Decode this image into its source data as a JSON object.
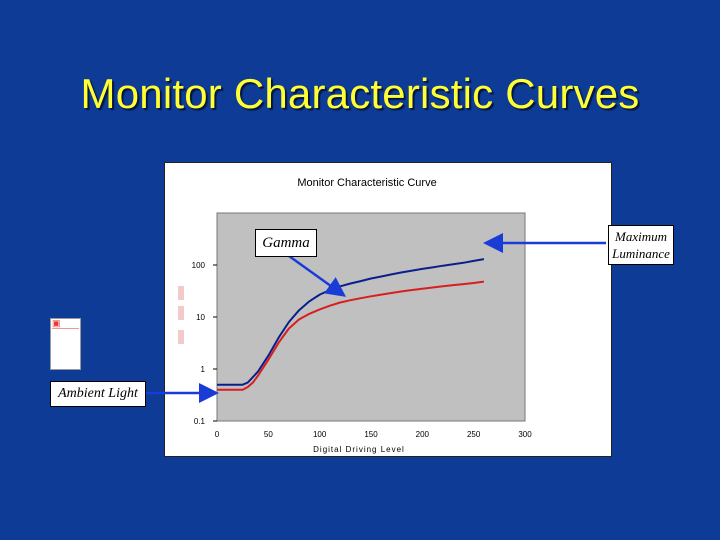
{
  "slide": {
    "title": "Monitor Characteristic Curves"
  },
  "callouts": {
    "gamma": "Gamma",
    "max_luminance_line1": "Maximum",
    "max_luminance_line2": "Luminance",
    "ambient": "Ambient Light"
  },
  "colors": {
    "background": "#0d3b96",
    "title": "#ffff33",
    "plot_area": "#c0c0c0",
    "series_blue": "#0a1f8c",
    "series_red": "#d81e1e",
    "arrow": "#1a3cd6"
  },
  "chart_data": {
    "type": "line",
    "title": "Monitor Characteristic Curve",
    "xlabel": "Digital Driving Level",
    "ylabel": "",
    "xlim": [
      0,
      300
    ],
    "ylim": [
      0.1,
      1000
    ],
    "yscale": "log",
    "x_ticks": [
      0,
      50,
      100,
      150,
      200,
      250,
      300
    ],
    "y_ticks": [
      0.1,
      1,
      10,
      100
    ],
    "y_tick_labels": [
      "0.1",
      "1",
      "10",
      "100"
    ],
    "grid": false,
    "series": [
      {
        "color": "#0a1f8c",
        "x": [
          0,
          25,
          30,
          35,
          40,
          50,
          60,
          70,
          80,
          90,
          100,
          110,
          120,
          130,
          140,
          150,
          160,
          170,
          180,
          190,
          200,
          210,
          220,
          230,
          240,
          250,
          260
        ],
        "y": [
          0.5,
          0.5,
          0.55,
          0.7,
          0.9,
          1.8,
          4.0,
          8.0,
          13.5,
          20,
          27,
          33,
          39,
          44,
          49,
          55,
          60,
          66,
          72,
          78,
          84,
          90,
          97,
          103,
          110,
          120,
          130
        ]
      },
      {
        "color": "#d81e1e",
        "x": [
          0,
          25,
          30,
          35,
          40,
          50,
          60,
          70,
          80,
          90,
          100,
          110,
          120,
          130,
          140,
          150,
          160,
          170,
          180,
          190,
          200,
          210,
          220,
          230,
          240,
          250,
          260
        ],
        "y": [
          0.4,
          0.4,
          0.45,
          0.55,
          0.75,
          1.5,
          3.2,
          6.0,
          9.0,
          11.5,
          14,
          16.5,
          19,
          21,
          23,
          25,
          27,
          29,
          31,
          33,
          35,
          37,
          39,
          41,
          43,
          45,
          48
        ]
      }
    ]
  }
}
